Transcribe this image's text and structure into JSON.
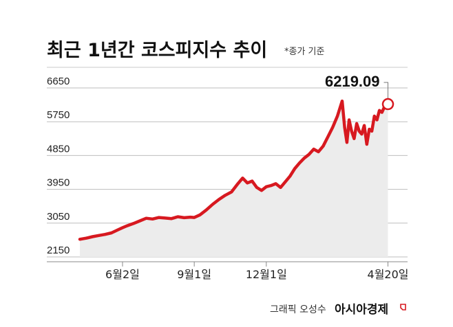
{
  "chart_data": {
    "type": "area",
    "title": "최근 1년간 코스피지수 추이",
    "note": "*종가 기준",
    "ylim": [
      2150,
      6650
    ],
    "yticks": [
      "6650",
      "5750",
      "4850",
      "3950",
      "3050",
      "2150"
    ],
    "ytick_values": [
      6650,
      5750,
      4850,
      3950,
      3050,
      2150
    ],
    "xticks": [
      "6월2일",
      "9월1일",
      "12월1일",
      "4월20일"
    ],
    "xtick_positions": [
      0.135,
      0.362,
      0.59,
      0.975
    ],
    "series": [
      {
        "color": "#d71920",
        "x": [
          0,
          0.02,
          0.04,
          0.06,
          0.08,
          0.1,
          0.12,
          0.135,
          0.15,
          0.17,
          0.19,
          0.21,
          0.23,
          0.25,
          0.27,
          0.29,
          0.31,
          0.33,
          0.35,
          0.362,
          0.38,
          0.4,
          0.42,
          0.44,
          0.46,
          0.48,
          0.5,
          0.515,
          0.53,
          0.545,
          0.56,
          0.575,
          0.59,
          0.605,
          0.62,
          0.635,
          0.65,
          0.665,
          0.68,
          0.695,
          0.71,
          0.725,
          0.74,
          0.755,
          0.77,
          0.785,
          0.8,
          0.815,
          0.83,
          0.838,
          0.845,
          0.852,
          0.86,
          0.868,
          0.876,
          0.884,
          0.892,
          0.9,
          0.908,
          0.916,
          0.924,
          0.932,
          0.94,
          0.948,
          0.956,
          0.964,
          0.975
        ],
        "values": [
          2620,
          2650,
          2690,
          2720,
          2750,
          2790,
          2870,
          2930,
          2980,
          3040,
          3110,
          3180,
          3160,
          3200,
          3185,
          3170,
          3220,
          3195,
          3210,
          3200,
          3270,
          3400,
          3550,
          3680,
          3790,
          3880,
          4100,
          4250,
          4120,
          4170,
          4000,
          3920,
          4020,
          4050,
          4100,
          4000,
          4150,
          4300,
          4500,
          4650,
          4780,
          4880,
          5020,
          4950,
          5100,
          5350,
          5600,
          5900,
          6300,
          5600,
          5200,
          5800,
          5500,
          5300,
          5700,
          5500,
          5420,
          5650,
          5150,
          5550,
          5500,
          5900,
          5800,
          6050,
          6000,
          6150,
          6219.09
        ]
      }
    ],
    "callout_label": "6219.09",
    "callout_value": 6219.09,
    "callout_x": 0.975
  },
  "credit": {
    "graphic": "그래픽 오성수",
    "brand": "아시아경제"
  }
}
